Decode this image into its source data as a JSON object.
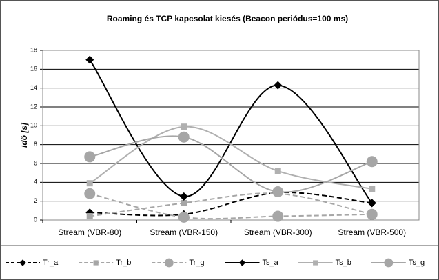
{
  "chart_data": {
    "type": "line",
    "title": "Roaming és TCP kapcsolat kiesés (Beacon periódus=100 ms)",
    "y_label": "idő [s]",
    "categories": [
      "Stream (VBR-80)",
      "Stream (VBR-150)",
      "Stream (VBR-300)",
      "Stream (VBR-500)"
    ],
    "ylim": [
      0,
      18
    ],
    "yticks": [
      0,
      2,
      4,
      6,
      8,
      10,
      12,
      14,
      16,
      18
    ],
    "grid": true,
    "legend": "bottom",
    "series": [
      {
        "name": "Tr_a",
        "color": "#000000",
        "dash": true,
        "marker": "diamond",
        "values": [
          0.8,
          0.6,
          2.9,
          1.8
        ]
      },
      {
        "name": "Tr_b",
        "color": "#a6a6a6",
        "dash": true,
        "marker": "square",
        "values": [
          0.4,
          1.8,
          2.8,
          0.6
        ]
      },
      {
        "name": "Tr_g",
        "color": "#a6a6a6",
        "dash": true,
        "marker": "circle",
        "values": [
          2.8,
          0.3,
          0.4,
          0.6
        ]
      },
      {
        "name": "Ts_a",
        "color": "#000000",
        "dash": false,
        "marker": "diamond",
        "values": [
          17,
          2.5,
          14.3,
          1.8
        ]
      },
      {
        "name": "Ts_b",
        "color": "#b0b0b0",
        "dash": false,
        "marker": "square",
        "values": [
          3.9,
          9.9,
          5.2,
          3.3
        ]
      },
      {
        "name": "Ts_g",
        "color": "#a6a6a6",
        "dash": false,
        "marker": "circle",
        "values": [
          6.7,
          8.8,
          3.0,
          6.2
        ]
      }
    ]
  }
}
